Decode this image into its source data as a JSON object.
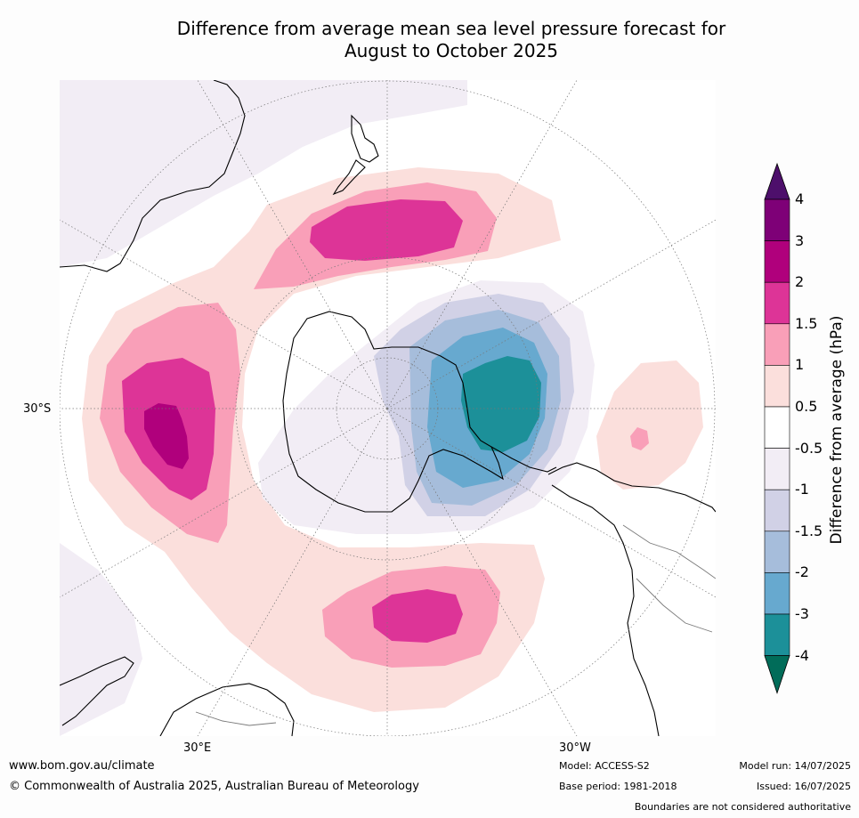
{
  "title": {
    "line1": "Difference from average mean sea level pressure forecast for",
    "line2": "August to October 2025"
  },
  "map": {
    "lat_label": "30°S",
    "lon_labels": {
      "east": "30°E",
      "west": "30°W"
    },
    "colors": {
      "ocean": "#ffffff",
      "land_outline": "#000000",
      "borders": "#7a7a7a",
      "graticule": "#777777"
    }
  },
  "colorbar": {
    "label": "Difference from average (hPa)",
    "ticks": [
      "4",
      "3",
      "2",
      "1.5",
      "1",
      "0.5",
      "-0.5",
      "-1",
      "-1.5",
      "-2",
      "-3",
      "-4"
    ],
    "bands": [
      {
        "range": "above 4",
        "color": "#4d0f6b"
      },
      {
        "range": "3 to 4",
        "color": "#7e0077"
      },
      {
        "range": "2 to 3",
        "color": "#b0007c"
      },
      {
        "range": "1.5 to 2",
        "color": "#dd3497"
      },
      {
        "range": "1 to 1.5",
        "color": "#f99fb8"
      },
      {
        "range": "0.5 to 1",
        "color": "#fbdfdc"
      },
      {
        "range": "-0.5 to 0.5",
        "color": "#ffffff"
      },
      {
        "range": "-1 to -0.5",
        "color": "#f2edf5"
      },
      {
        "range": "-1.5 to -1",
        "color": "#d1d1e6"
      },
      {
        "range": "-2 to -1.5",
        "color": "#a6bddb"
      },
      {
        "range": "-3 to -2",
        "color": "#67a9cf"
      },
      {
        "range": "-4 to -3",
        "color": "#1c9099"
      },
      {
        "range": "below -4",
        "color": "#016c59"
      }
    ]
  },
  "footer": {
    "website": "www.bom.gov.au/climate",
    "copyright": "© Commonwealth of Australia 2025, Australian Bureau of Meteorology",
    "model": "Model: ACCESS-S2",
    "base_period": "Base period: 1981-2018",
    "model_run": "Model run: 14/07/2025",
    "issued": "Issued: 16/07/2025",
    "disclaimer": "Boundaries are not considered authoritative"
  }
}
